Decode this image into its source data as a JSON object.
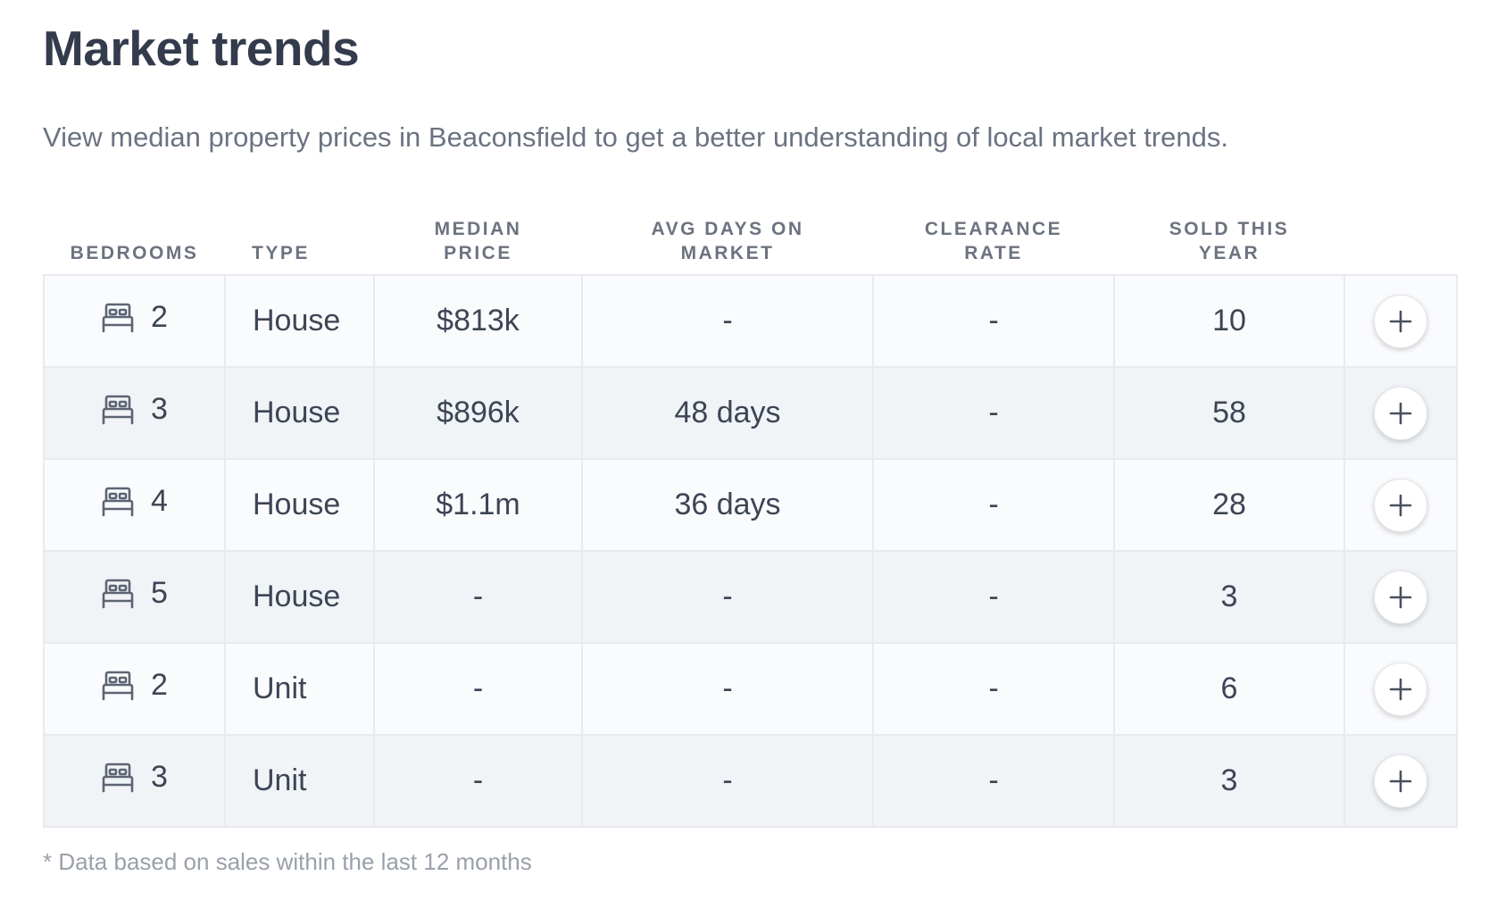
{
  "page": {
    "title": "Market trends",
    "subtitle": "View median property prices in Beaconsfield to get a better understanding of local market trends.",
    "footnote": "* Data based on sales within the last 12 months"
  },
  "table": {
    "headers": {
      "bedrooms": [
        "BEDROOMS"
      ],
      "type": [
        "TYPE"
      ],
      "median_price": [
        "MEDIAN",
        "PRICE"
      ],
      "avg_days": [
        "AVG DAYS ON",
        "MARKET"
      ],
      "clearance": [
        "CLEARANCE",
        "RATE"
      ],
      "sold": [
        "SOLD THIS",
        "YEAR"
      ]
    },
    "rows": [
      {
        "bedrooms": "2",
        "type": "House",
        "median_price": "$813k",
        "avg_days": "-",
        "clearance": "-",
        "sold": "10"
      },
      {
        "bedrooms": "3",
        "type": "House",
        "median_price": "$896k",
        "avg_days": "48 days",
        "clearance": "-",
        "sold": "58"
      },
      {
        "bedrooms": "4",
        "type": "House",
        "median_price": "$1.1m",
        "avg_days": "36 days",
        "clearance": "-",
        "sold": "28"
      },
      {
        "bedrooms": "5",
        "type": "House",
        "median_price": "-",
        "avg_days": "-",
        "clearance": "-",
        "sold": "3"
      },
      {
        "bedrooms": "2",
        "type": "Unit",
        "median_price": "-",
        "avg_days": "-",
        "clearance": "-",
        "sold": "6"
      },
      {
        "bedrooms": "3",
        "type": "Unit",
        "median_price": "-",
        "avg_days": "-",
        "clearance": "-",
        "sold": "3"
      }
    ]
  },
  "icons": {
    "bedrooms": "bed-icon",
    "expand": "plus-icon"
  },
  "colors": {
    "icon": "#5d6573",
    "row_odd": "#fafbfd",
    "row_even": "#f1f4f7",
    "border": "#e8eaee"
  }
}
